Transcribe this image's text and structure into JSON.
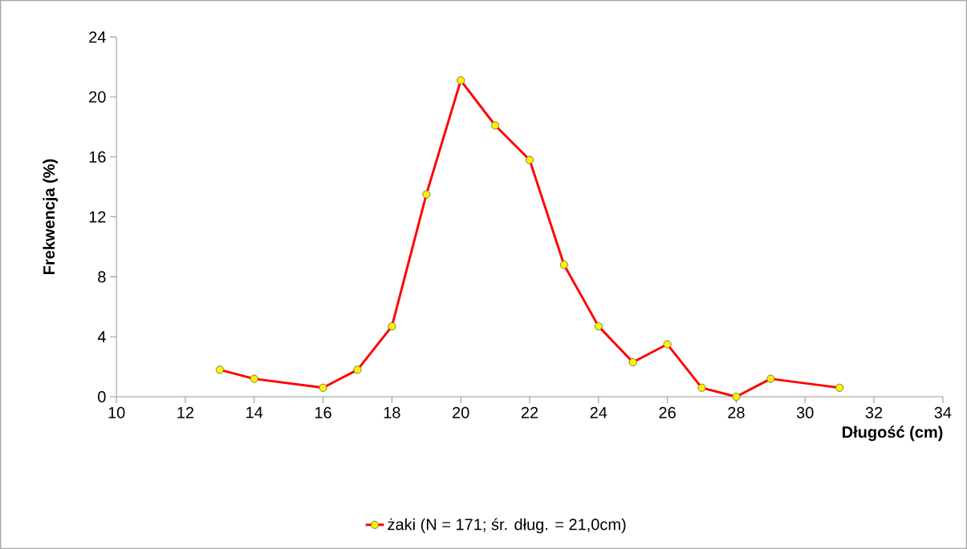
{
  "chart_data": {
    "type": "line",
    "xlabel": "Długość (cm)",
    "ylabel": "Frekwencja (%)",
    "x": [
      13,
      14,
      16,
      17,
      18,
      19,
      20,
      21,
      22,
      23,
      24,
      25,
      26,
      27,
      28,
      29,
      31
    ],
    "series": [
      {
        "name": "żaki (N = 171; śr. dług. = 21,0cm)",
        "color": "#ff0000",
        "values": [
          1.8,
          1.2,
          0.6,
          1.8,
          4.7,
          13.5,
          21.1,
          18.1,
          15.8,
          8.8,
          4.7,
          2.3,
          3.5,
          0.6,
          0,
          1.2,
          0.6
        ]
      }
    ],
    "xlim": [
      10,
      34
    ],
    "xticks": [
      10,
      12,
      14,
      16,
      18,
      20,
      22,
      24,
      26,
      28,
      30,
      32,
      34
    ],
    "ylim": [
      0,
      24
    ],
    "yticks": [
      0,
      4,
      8,
      12,
      16,
      20,
      24
    ],
    "grid": false,
    "legend": "bottom",
    "marker": "circle",
    "line_style": "solid"
  }
}
